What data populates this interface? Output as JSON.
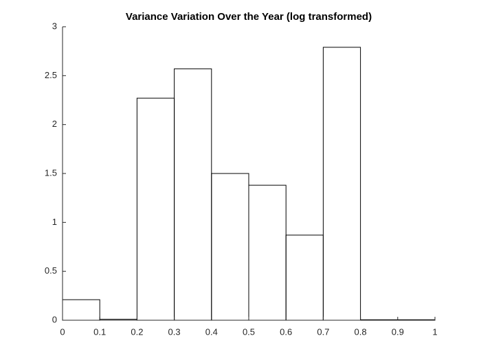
{
  "chart_data": {
    "type": "histogram",
    "title": "Variance Variation Over the Year (log transformed)",
    "bins": [
      0,
      0.1,
      0.2,
      0.3,
      0.4,
      0.5,
      0.6,
      0.7,
      0.8,
      0.9,
      1
    ],
    "counts": [
      0.21,
      0.01,
      2.27,
      2.57,
      1.5,
      1.38,
      0.87,
      2.79,
      0.005,
      0.005
    ],
    "color": "#000000",
    "xlim": [
      0,
      1
    ],
    "xticks": [
      0,
      0.1,
      0.2,
      0.3,
      0.4,
      0.5,
      0.6,
      0.7,
      0.8,
      0.9,
      1
    ],
    "ylim": [
      0,
      3
    ],
    "yticks": [
      0,
      0.5,
      1,
      1.5,
      2,
      2.5,
      3
    ]
  }
}
